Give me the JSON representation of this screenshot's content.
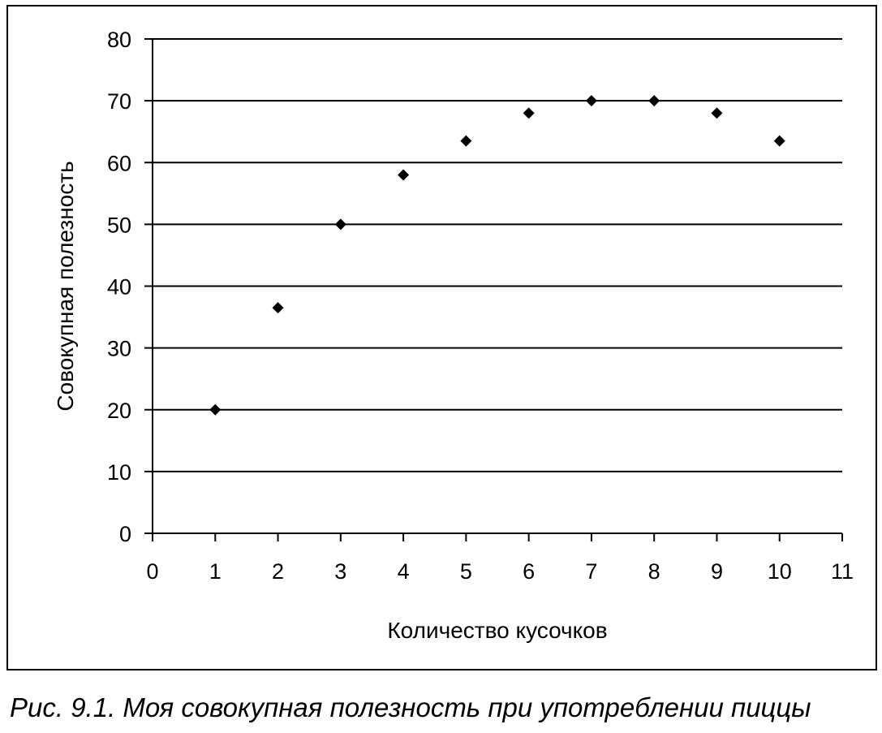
{
  "caption": "Рис. 9.1. Моя совокупная полезность при употреблении пиццы",
  "chart_data": {
    "type": "scatter",
    "title": "",
    "xlabel": "Количество кусочков",
    "ylabel": "Совокупная полезность",
    "xlim": [
      0,
      11
    ],
    "ylim": [
      0,
      80
    ],
    "xticks": [
      0,
      1,
      2,
      3,
      4,
      5,
      6,
      7,
      8,
      9,
      10,
      11
    ],
    "yticks": [
      0,
      10,
      20,
      30,
      40,
      50,
      60,
      70,
      80
    ],
    "grid": "horizontal",
    "legend": "none",
    "marker": "diamond",
    "marker_color": "#000000",
    "series": [
      {
        "x": [
          1,
          2,
          3,
          4,
          5,
          6,
          7,
          8,
          9,
          10
        ],
        "y": [
          20,
          36.5,
          50,
          58,
          63.5,
          68,
          70,
          70,
          68,
          63.5
        ]
      }
    ]
  }
}
